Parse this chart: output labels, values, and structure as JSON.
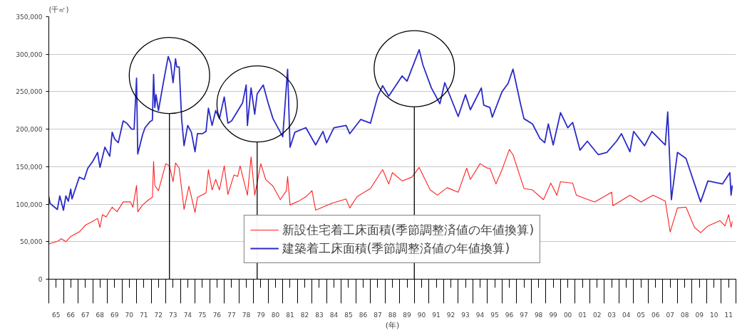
{
  "chart_data": {
    "type": "line",
    "ylabel": "(千㎡)",
    "xlabel": "(年)",
    "xlim": [
      "1965-01",
      "2012-01"
    ],
    "xticks": [
      {
        "value": "1965-07",
        "label": "65"
      },
      {
        "value": "1966-07",
        "label": "66"
      },
      {
        "value": "1967-07",
        "label": "67"
      },
      {
        "value": "1968-07",
        "label": "68"
      },
      {
        "value": "1969-07",
        "label": "69"
      },
      {
        "value": "1970-07",
        "label": "70"
      },
      {
        "value": "1971-07",
        "label": "71"
      },
      {
        "value": "1972-07",
        "label": "72"
      },
      {
        "value": "1973-07",
        "label": "73"
      },
      {
        "value": "1974-07",
        "label": "74"
      },
      {
        "value": "1975-07",
        "label": "75"
      },
      {
        "value": "1976-07",
        "label": "76"
      },
      {
        "value": "1977-07",
        "label": "77"
      },
      {
        "value": "1978-07",
        "label": "78"
      },
      {
        "value": "1979-07",
        "label": "79"
      },
      {
        "value": "1980-07",
        "label": "80"
      },
      {
        "value": "1981-07",
        "label": "81"
      },
      {
        "value": "1982-07",
        "label": "82"
      },
      {
        "value": "1983-07",
        "label": "83"
      },
      {
        "value": "1984-07",
        "label": "84"
      },
      {
        "value": "1985-07",
        "label": "85"
      },
      {
        "value": "1986-07",
        "label": "86"
      },
      {
        "value": "1987-07",
        "label": "87"
      },
      {
        "value": "1988-07",
        "label": "88"
      },
      {
        "value": "1989-07",
        "label": "89"
      },
      {
        "value": "1990-07",
        "label": "90"
      },
      {
        "value": "1991-07",
        "label": "91"
      },
      {
        "value": "1992-07",
        "label": "92"
      },
      {
        "value": "1993-07",
        "label": "93"
      },
      {
        "value": "1994-07",
        "label": "94"
      },
      {
        "value": "1995-07",
        "label": "95"
      },
      {
        "value": "1996-07",
        "label": "96"
      },
      {
        "value": "1997-07",
        "label": "97"
      },
      {
        "value": "1998-07",
        "label": "98"
      },
      {
        "value": "1999-07",
        "label": "99"
      },
      {
        "value": "2000-07",
        "label": "00"
      },
      {
        "value": "2001-07",
        "label": "01"
      },
      {
        "value": "2002-07",
        "label": "02"
      },
      {
        "value": "2003-07",
        "label": "03"
      },
      {
        "value": "2004-07",
        "label": "04"
      },
      {
        "value": "2005-07",
        "label": "05"
      },
      {
        "value": "2006-07",
        "label": "06"
      },
      {
        "value": "2007-07",
        "label": "07"
      },
      {
        "value": "2008-07",
        "label": "08"
      },
      {
        "value": "2009-07",
        "label": "09"
      },
      {
        "value": "2010-07",
        "label": "10"
      },
      {
        "value": "2011-07",
        "label": "11"
      },
      {
        "value": "1965-01",
        "label": null
      },
      {
        "value": "1966-01",
        "label": null
      },
      {
        "value": "1967-01",
        "label": null
      },
      {
        "value": "1968-01",
        "label": null
      },
      {
        "value": "1969-01",
        "label": null
      },
      {
        "value": "1970-01",
        "label": null
      },
      {
        "value": "1971-01",
        "label": null
      },
      {
        "value": "1972-01",
        "label": null
      },
      {
        "value": "1973-01",
        "label": null
      },
      {
        "value": "1974-01",
        "label": null
      },
      {
        "value": "1975-01",
        "label": null
      },
      {
        "value": "1976-01",
        "label": null
      },
      {
        "value": "1977-01",
        "label": null
      },
      {
        "value": "1978-01",
        "label": null
      },
      {
        "value": "1979-01",
        "label": null
      },
      {
        "value": "1980-01",
        "label": null
      },
      {
        "value": "1981-01",
        "label": null
      },
      {
        "value": "1982-01",
        "label": null
      },
      {
        "value": "1983-01",
        "label": null
      },
      {
        "value": "1984-01",
        "label": null
      },
      {
        "value": "1985-01",
        "label": null
      },
      {
        "value": "1986-01",
        "label": null
      },
      {
        "value": "1987-01",
        "label": null
      },
      {
        "value": "1988-01",
        "label": null
      },
      {
        "value": "1989-01",
        "label": null
      },
      {
        "value": "1990-01",
        "label": null
      },
      {
        "value": "1991-01",
        "label": null
      },
      {
        "value": "1992-01",
        "label": null
      },
      {
        "value": "1993-01",
        "label": null
      },
      {
        "value": "1994-01",
        "label": null
      },
      {
        "value": "1995-01",
        "label": null
      },
      {
        "value": "1996-01",
        "label": null
      },
      {
        "value": "1997-01",
        "label": null
      },
      {
        "value": "1998-01",
        "label": null
      },
      {
        "value": "1999-01",
        "label": null
      },
      {
        "value": "2000-01",
        "label": null
      },
      {
        "value": "2001-01",
        "label": null
      },
      {
        "value": "2002-01",
        "label": null
      },
      {
        "value": "2003-01",
        "label": null
      },
      {
        "value": "2004-01",
        "label": null
      },
      {
        "value": "2005-01",
        "label": null
      },
      {
        "value": "2006-01",
        "label": null
      },
      {
        "value": "2007-01",
        "label": null
      },
      {
        "value": "2008-01",
        "label": null
      },
      {
        "value": "2009-01",
        "label": null
      },
      {
        "value": "2010-01",
        "label": null
      },
      {
        "value": "2011-01",
        "label": null
      },
      {
        "value": "2012-01",
        "label": null
      }
    ],
    "ylim": [
      0,
      350000
    ],
    "yticks": [
      0,
      {
        "value": 50000,
        "label": "50,000"
      },
      {
        "value": 100000,
        "label": "100,000"
      },
      {
        "value": 150000,
        "label": "150,000"
      },
      {
        "value": 200000,
        "label": "200,000"
      },
      {
        "value": 250000,
        "label": "250,000"
      },
      {
        "value": 300000,
        "label": "300,000"
      },
      {
        "value": 350000,
        "label": "350,000"
      }
    ],
    "grid": "y",
    "legend": "bottom",
    "line_style": "solid",
    "ref_lines": [
      {
        "axis": "x",
        "value": "1973-04",
        "color": "#000000"
      },
      {
        "axis": "x",
        "value": "1979-04",
        "color": "#000000"
      },
      {
        "axis": "x",
        "value": "1990-01",
        "color": "#000000"
      }
    ],
    "series": [
      {
        "name": "新設住宅着工床面積(季節調整済値の年値換算)",
        "color": "#ff2020",
        "x": [
          "1965-01",
          "1965-09",
          "1965-11",
          "1966-03",
          "1966-07",
          "1967-02",
          "1967-07",
          "1968-01",
          "1968-05",
          "1968-07",
          "1968-09",
          "1968-12",
          "1969-05",
          "1969-09",
          "1970-02",
          "1970-08",
          "1970-10",
          "1971-01",
          "1971-02",
          "1971-06",
          "1971-11",
          "1972-02",
          "1972-03",
          "1972-04",
          "1972-07",
          "1973-01",
          "1973-04",
          "1973-07",
          "1973-09",
          "1973-12",
          "1974-04",
          "1974-08",
          "1975-01",
          "1975-03",
          "1975-10",
          "1975-12",
          "1976-03",
          "1976-06",
          "1976-09",
          "1977-01",
          "1977-04",
          "1977-09",
          "1977-12",
          "1978-02",
          "1978-08",
          "1978-11",
          "1979-02",
          "1979-07",
          "1979-11",
          "1980-05",
          "1980-11",
          "1981-04",
          "1981-05",
          "1981-07",
          "1982-02",
          "1982-08",
          "1983-01",
          "1983-04",
          "1984-05",
          "1985-05",
          "1985-08",
          "1986-02",
          "1987-01",
          "1987-11",
          "1988-04",
          "1988-07",
          "1989-03",
          "1989-11",
          "1990-05",
          "1990-08",
          "1991-02",
          "1991-08",
          "1992-04",
          "1993-01",
          "1993-08",
          "1993-11",
          "1994-07",
          "1995-01",
          "1995-03",
          "1995-08",
          "1996-01",
          "1996-07",
          "1996-10",
          "1997-04",
          "1997-07",
          "1998-02",
          "1998-11",
          "1999-05",
          "1999-10",
          "2000-01",
          "2000-11",
          "2001-02",
          "2002-05",
          "2003-07",
          "2003-08",
          "2004-10",
          "2005-07",
          "2006-05",
          "2007-03",
          "2007-07",
          "2008-01",
          "2008-08",
          "2009-03",
          "2009-08",
          "2010-02",
          "2010-12",
          "2011-04",
          "2011-07",
          "2011-09",
          "2011-10"
        ],
        "values": [
          47000,
          51000,
          54000,
          50000,
          57000,
          63000,
          72000,
          77000,
          81000,
          69000,
          86000,
          83000,
          96000,
          90000,
          103000,
          103000,
          96000,
          125000,
          90000,
          99000,
          106000,
          109000,
          157000,
          125000,
          118000,
          154000,
          151000,
          130000,
          155000,
          148000,
          93000,
          124000,
          89000,
          109000,
          115000,
          146000,
          119000,
          133000,
          119000,
          151000,
          113000,
          139000,
          137000,
          151000,
          112000,
          163000,
          112000,
          154000,
          133000,
          124000,
          106000,
          118000,
          137000,
          99000,
          104000,
          110000,
          118000,
          92000,
          101000,
          107000,
          95000,
          110000,
          121000,
          146000,
          127000,
          142000,
          131000,
          136000,
          149000,
          139000,
          119000,
          112000,
          122000,
          116000,
          148000,
          133000,
          154000,
          148000,
          148000,
          127000,
          146000,
          173000,
          166000,
          136000,
          121000,
          119000,
          106000,
          128000,
          112000,
          130000,
          128000,
          112000,
          103000,
          116000,
          98000,
          112000,
          103000,
          112000,
          104000,
          63000,
          95000,
          96000,
          69000,
          62000,
          71000,
          78000,
          71000,
          86000,
          69000,
          77000
        ]
      },
      {
        "name": "建築着工床面積(季節調整済値の年値換算)",
        "color": "#2b2bc8",
        "x": [
          "1965-01",
          "1965-02",
          "1965-08",
          "1965-10",
          "1966-01",
          "1966-03",
          "1966-05",
          "1966-07",
          "1966-08",
          "1967-02",
          "1967-06",
          "1967-09",
          "1968-01",
          "1968-05",
          "1968-07",
          "1968-11",
          "1969-03",
          "1969-05",
          "1969-07",
          "1969-10",
          "1970-02",
          "1970-05",
          "1970-09",
          "1970-11",
          "1971-01",
          "1971-02",
          "1971-06",
          "1971-08",
          "1971-12",
          "1972-02",
          "1972-03",
          "1972-04",
          "1972-05",
          "1972-07",
          "1972-11",
          "1973-03",
          "1973-05",
          "1973-07",
          "1973-09",
          "1973-10",
          "1973-12",
          "1974-02",
          "1974-04",
          "1974-07",
          "1974-10",
          "1975-01",
          "1975-03",
          "1975-07",
          "1975-10",
          "1975-12",
          "1976-03",
          "1976-06",
          "1976-09",
          "1977-01",
          "1977-04",
          "1977-07",
          "1978-04",
          "1978-07",
          "1978-08",
          "1978-11",
          "1979-02",
          "1979-04",
          "1979-09",
          "1980-01",
          "1980-05",
          "1981-01",
          "1981-05",
          "1981-07",
          "1981-11",
          "1982-08",
          "1983-04",
          "1983-10",
          "1984-01",
          "1984-07",
          "1985-05",
          "1985-08",
          "1986-05",
          "1987-01",
          "1987-07",
          "1987-11",
          "1988-04",
          "1989-03",
          "1989-07",
          "1990-05",
          "1990-08",
          "1991-03",
          "1991-10",
          "1992-02",
          "1993-01",
          "1993-07",
          "1993-11",
          "1994-08",
          "1994-10",
          "1995-03",
          "1995-05",
          "1996-01",
          "1996-06",
          "1996-10",
          "1997-04",
          "1997-07",
          "1998-02",
          "1998-08",
          "1998-12",
          "1999-03",
          "1999-07",
          "2000-01",
          "2000-07",
          "2000-11",
          "2001-05",
          "2001-11",
          "2002-08",
          "2003-03",
          "2003-11",
          "2004-03",
          "2004-10",
          "2005-01",
          "2005-10",
          "2006-04",
          "2007-03",
          "2007-05",
          "2007-08",
          "2008-01",
          "2008-08",
          "2009-03",
          "2009-08",
          "2010-02",
          "2011-02",
          "2011-08",
          "2011-09",
          "2011-10"
        ],
        "values": [
          110000,
          101000,
          93000,
          111000,
          92000,
          111000,
          104000,
          120000,
          107000,
          136000,
          133000,
          148000,
          157000,
          169000,
          149000,
          176000,
          164000,
          196000,
          187000,
          182000,
          211000,
          208000,
          200000,
          200000,
          268000,
          167000,
          193000,
          202000,
          210000,
          212000,
          273000,
          229000,
          246000,
          225000,
          262000,
          297000,
          288000,
          262000,
          294000,
          283000,
          283000,
          214000,
          178000,
          205000,
          196000,
          170000,
          194000,
          194000,
          197000,
          228000,
          205000,
          225000,
          214000,
          243000,
          208000,
          211000,
          235000,
          259000,
          205000,
          255000,
          220000,
          247000,
          259000,
          235000,
          214000,
          190000,
          280000,
          176000,
          196000,
          202000,
          179000,
          197000,
          182000,
          202000,
          205000,
          194000,
          213000,
          208000,
          244000,
          258000,
          244000,
          271000,
          264000,
          306000,
          286000,
          255000,
          234000,
          262000,
          217000,
          246000,
          226000,
          255000,
          232000,
          229000,
          216000,
          250000,
          261000,
          280000,
          235000,
          214000,
          207000,
          188000,
          182000,
          207000,
          179000,
          222000,
          202000,
          209000,
          172000,
          184000,
          166000,
          169000,
          184000,
          194000,
          170000,
          197000,
          178000,
          197000,
          179000,
          223000,
          106000,
          169000,
          161000,
          127000,
          103000,
          131000,
          127000,
          142000,
          112000,
          125000
        ]
      }
    ]
  }
}
